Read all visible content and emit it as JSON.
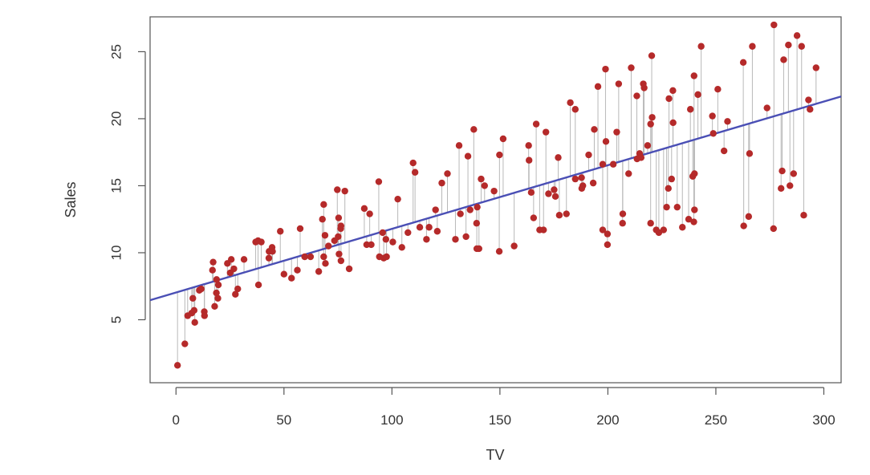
{
  "chart_data": {
    "type": "scatter",
    "xlabel": "TV",
    "ylabel": "Sales",
    "xlim": [
      -12,
      308
    ],
    "ylim": [
      0.3,
      27.6
    ],
    "x_ticks": [
      0,
      50,
      100,
      150,
      200,
      250,
      300
    ],
    "y_ticks": [
      5,
      10,
      15,
      20,
      25
    ],
    "grid": false,
    "regression_line": {
      "intercept": 7.03,
      "slope": 0.0475
    },
    "colors": {
      "points": "#b52a2a",
      "fit_line": "#4a4fb5",
      "residuals": "#b8b8b8",
      "frame": "#555555"
    },
    "points": [
      [
        0.7,
        1.6
      ],
      [
        4.1,
        3.2
      ],
      [
        5.4,
        5.3
      ],
      [
        7.3,
        5.5
      ],
      [
        7.8,
        6.6
      ],
      [
        8.4,
        5.7
      ],
      [
        8.7,
        4.8
      ],
      [
        10.8,
        7.2
      ],
      [
        11.7,
        7.3
      ],
      [
        13.1,
        5.6
      ],
      [
        13.2,
        5.3
      ],
      [
        16.9,
        8.7
      ],
      [
        17.2,
        9.3
      ],
      [
        18.7,
        7.0
      ],
      [
        18.8,
        8.0
      ],
      [
        19.4,
        6.6
      ],
      [
        17.9,
        6.0
      ],
      [
        19.6,
        7.6
      ],
      [
        23.8,
        9.2
      ],
      [
        25.1,
        8.5
      ],
      [
        25.6,
        9.5
      ],
      [
        26.8,
        8.8
      ],
      [
        27.5,
        6.9
      ],
      [
        28.6,
        7.3
      ],
      [
        31.5,
        9.5
      ],
      [
        36.9,
        10.8
      ],
      [
        38.0,
        10.9
      ],
      [
        38.2,
        7.6
      ],
      [
        39.5,
        10.8
      ],
      [
        43.0,
        9.6
      ],
      [
        43.1,
        10.1
      ],
      [
        44.5,
        10.4
      ],
      [
        44.7,
        10.1
      ],
      [
        48.3,
        11.6
      ],
      [
        50.0,
        8.4
      ],
      [
        53.5,
        8.1
      ],
      [
        56.2,
        8.7
      ],
      [
        57.5,
        11.8
      ],
      [
        59.6,
        9.7
      ],
      [
        62.3,
        9.7
      ],
      [
        66.1,
        8.6
      ],
      [
        67.8,
        12.5
      ],
      [
        68.4,
        9.7
      ],
      [
        68.4,
        13.6
      ],
      [
        69.0,
        11.3
      ],
      [
        69.2,
        9.2
      ],
      [
        70.6,
        10.5
      ],
      [
        73.4,
        10.9
      ],
      [
        74.7,
        14.7
      ],
      [
        75.1,
        11.2
      ],
      [
        75.3,
        12.6
      ],
      [
        75.5,
        9.9
      ],
      [
        76.3,
        11.8
      ],
      [
        76.4,
        9.4
      ],
      [
        76.4,
        12.0
      ],
      [
        78.2,
        14.6
      ],
      [
        80.2,
        8.8
      ],
      [
        87.2,
        13.3
      ],
      [
        88.3,
        10.6
      ],
      [
        89.7,
        12.9
      ],
      [
        90.4,
        10.6
      ],
      [
        93.9,
        15.3
      ],
      [
        94.2,
        9.7
      ],
      [
        95.7,
        11.5
      ],
      [
        96.2,
        9.6
      ],
      [
        97.5,
        9.7
      ],
      [
        97.2,
        11.0
      ],
      [
        100.4,
        10.8
      ],
      [
        102.7,
        14.0
      ],
      [
        104.6,
        10.4
      ],
      [
        107.4,
        11.5
      ],
      [
        109.8,
        16.7
      ],
      [
        110.7,
        16.0
      ],
      [
        112.9,
        11.9
      ],
      [
        116.0,
        11.0
      ],
      [
        117.2,
        11.9
      ],
      [
        120.2,
        13.2
      ],
      [
        121.0,
        11.6
      ],
      [
        123.1,
        15.2
      ],
      [
        125.7,
        15.9
      ],
      [
        129.4,
        11.0
      ],
      [
        131.1,
        18.0
      ],
      [
        131.7,
        12.9
      ],
      [
        134.3,
        11.2
      ],
      [
        135.2,
        17.2
      ],
      [
        136.2,
        13.2
      ],
      [
        137.9,
        19.2
      ],
      [
        139.2,
        12.2
      ],
      [
        139.3,
        10.3
      ],
      [
        139.5,
        13.4
      ],
      [
        140.3,
        10.3
      ],
      [
        141.3,
        15.5
      ],
      [
        142.9,
        15.0
      ],
      [
        147.3,
        14.6
      ],
      [
        149.7,
        10.1
      ],
      [
        149.8,
        17.3
      ],
      [
        151.5,
        18.5
      ],
      [
        156.6,
        10.5
      ],
      [
        163.3,
        18.0
      ],
      [
        163.5,
        16.9
      ],
      [
        164.5,
        14.5
      ],
      [
        165.6,
        12.6
      ],
      [
        166.8,
        19.6
      ],
      [
        168.4,
        11.7
      ],
      [
        170.2,
        11.7
      ],
      [
        171.3,
        19.0
      ],
      [
        172.5,
        14.4
      ],
      [
        175.1,
        14.7
      ],
      [
        175.7,
        14.2
      ],
      [
        177.0,
        17.1
      ],
      [
        177.5,
        12.8
      ],
      [
        180.8,
        12.9
      ],
      [
        182.6,
        21.2
      ],
      [
        184.9,
        20.7
      ],
      [
        184.9,
        15.5
      ],
      [
        187.8,
        15.6
      ],
      [
        187.9,
        14.8
      ],
      [
        188.4,
        15.0
      ],
      [
        191.1,
        17.3
      ],
      [
        193.2,
        15.2
      ],
      [
        193.7,
        19.2
      ],
      [
        195.4,
        22.4
      ],
      [
        197.6,
        16.6
      ],
      [
        197.6,
        11.7
      ],
      [
        198.9,
        23.7
      ],
      [
        199.1,
        18.3
      ],
      [
        199.8,
        11.4
      ],
      [
        199.8,
        10.6
      ],
      [
        202.5,
        16.6
      ],
      [
        204.1,
        19.0
      ],
      [
        205.0,
        22.6
      ],
      [
        206.8,
        12.2
      ],
      [
        206.9,
        12.9
      ],
      [
        209.6,
        15.9
      ],
      [
        210.8,
        23.8
      ],
      [
        213.4,
        21.7
      ],
      [
        213.5,
        17.0
      ],
      [
        214.7,
        17.4
      ],
      [
        215.4,
        17.1
      ],
      [
        216.4,
        22.6
      ],
      [
        216.8,
        22.3
      ],
      [
        218.4,
        18.0
      ],
      [
        219.8,
        19.6
      ],
      [
        219.8,
        12.2
      ],
      [
        220.3,
        24.7
      ],
      [
        220.5,
        20.1
      ],
      [
        222.4,
        11.7
      ],
      [
        223.6,
        11.5
      ],
      [
        225.8,
        11.7
      ],
      [
        227.2,
        13.4
      ],
      [
        228.0,
        14.8
      ],
      [
        228.3,
        21.5
      ],
      [
        229.5,
        15.5
      ],
      [
        230.1,
        22.1
      ],
      [
        230.2,
        19.7
      ],
      [
        232.1,
        13.4
      ],
      [
        234.5,
        11.9
      ],
      [
        237.4,
        12.5
      ],
      [
        238.2,
        20.7
      ],
      [
        239.3,
        15.7
      ],
      [
        239.8,
        12.3
      ],
      [
        239.9,
        23.2
      ],
      [
        240.1,
        13.2
      ],
      [
        240.1,
        15.9
      ],
      [
        241.7,
        21.8
      ],
      [
        243.2,
        25.4
      ],
      [
        248.4,
        20.2
      ],
      [
        248.8,
        18.9
      ],
      [
        250.9,
        22.2
      ],
      [
        253.8,
        17.6
      ],
      [
        255.4,
        19.8
      ],
      [
        262.7,
        24.2
      ],
      [
        262.9,
        12.0
      ],
      [
        265.2,
        12.7
      ],
      [
        265.6,
        17.4
      ],
      [
        266.9,
        25.4
      ],
      [
        273.7,
        20.8
      ],
      [
        276.7,
        11.8
      ],
      [
        276.9,
        27.0
      ],
      [
        280.2,
        14.8
      ],
      [
        280.7,
        16.1
      ],
      [
        281.4,
        24.4
      ],
      [
        283.6,
        25.5
      ],
      [
        284.3,
        15.0
      ],
      [
        286.0,
        15.9
      ],
      [
        287.6,
        26.2
      ],
      [
        289.7,
        25.4
      ],
      [
        290.7,
        12.8
      ],
      [
        292.9,
        21.4
      ],
      [
        293.6,
        20.7
      ],
      [
        296.4,
        23.8
      ]
    ]
  }
}
